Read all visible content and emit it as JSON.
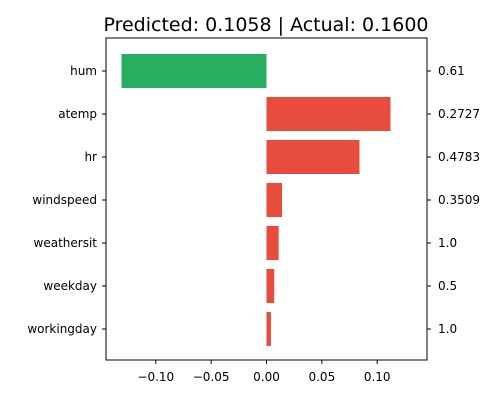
{
  "chart_data": {
    "type": "bar",
    "orientation": "horizontal",
    "title": "Predicted: 0.1058 | Actual: 0.1600",
    "xlabel": "",
    "ylabel": "",
    "categories": [
      "hum",
      "atemp",
      "hr",
      "windspeed",
      "weathersit",
      "weekday",
      "workingday"
    ],
    "values": [
      -0.131,
      0.112,
      0.084,
      0.014,
      0.011,
      0.007,
      0.004
    ],
    "feature_values": [
      "0.61",
      "0.2727",
      "0.4783",
      "0.3509",
      "1.0",
      "0.5",
      "1.0"
    ],
    "x_ticks": [
      -0.1,
      -0.05,
      0.0,
      0.05,
      0.1
    ],
    "x_tick_labels": [
      "−0.10",
      "−0.05",
      "0.00",
      "0.05",
      "0.10"
    ],
    "xlim": [
      -0.145,
      0.145
    ],
    "grid": false,
    "colors": {
      "positive": "#e74c3c",
      "negative": "#27ae60",
      "axis": "#000000",
      "background": "#ffffff"
    }
  }
}
